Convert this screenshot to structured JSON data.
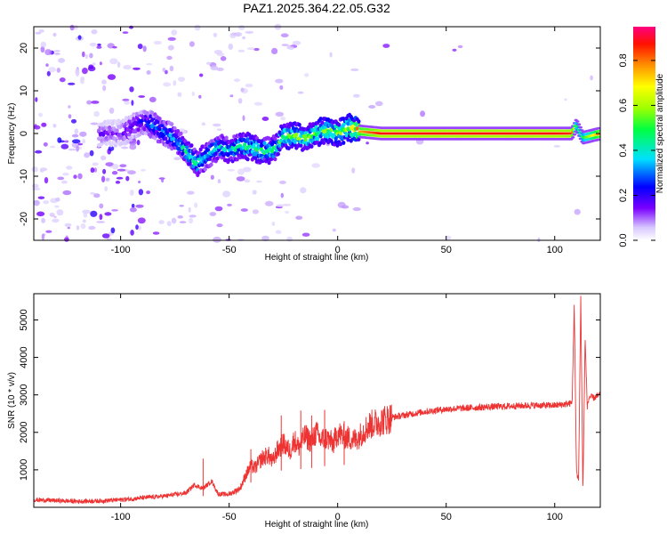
{
  "figure_title": "PAZ1.2025.364.22.05.G32",
  "chart_data": [
    {
      "type": "heatmap",
      "title": "PAZ1.2025.364.22.05.G32",
      "xlabel": "Height of straight line (km)",
      "ylabel": "Frequency (Hz)",
      "xlim": [
        -140,
        121
      ],
      "ylim": [
        -25,
        25
      ],
      "xticks": [
        -100,
        -50,
        0,
        50,
        100
      ],
      "yticks": [
        -20,
        -10,
        0,
        10,
        20
      ],
      "colorbar": {
        "label": "Normalized spectral amplitude",
        "range": [
          0,
          0.95
        ],
        "ticks": [
          0.0,
          0.2,
          0.4,
          0.6,
          0.8
        ],
        "colormap": "rainbow (white-lavender at 0 to magenta-red at max)"
      },
      "ridge": {
        "x": [
          -100,
          -90,
          -85,
          -80,
          -75,
          -70,
          -65,
          -60,
          -55,
          -50,
          -45,
          -40,
          -35,
          -30,
          -28,
          -25,
          -20,
          -15,
          -10,
          -5,
          0,
          5,
          10,
          20,
          50,
          100,
          108,
          110,
          113,
          121
        ],
        "y": [
          0,
          3,
          2,
          0,
          -1,
          -4,
          -7,
          -5,
          -3,
          -4,
          -3,
          -3,
          -4,
          -4,
          -3,
          -0.5,
          -0.5,
          -1,
          0,
          1,
          0,
          1.5,
          0.5,
          0,
          0,
          0,
          0,
          2,
          -1,
          0
        ],
        "amplitude": [
          0.15,
          0.25,
          0.3,
          0.35,
          0.35,
          0.45,
          0.45,
          0.4,
          0.4,
          0.45,
          0.45,
          0.5,
          0.5,
          0.5,
          0.5,
          0.55,
          0.55,
          0.55,
          0.55,
          0.6,
          0.6,
          0.6,
          0.8,
          0.92,
          0.92,
          0.92,
          0.9,
          0.5,
          0.5,
          0.85
        ]
      }
    },
    {
      "type": "line",
      "xlabel": "Height of straight line (km)",
      "ylabel": "SNR (10 * v/v)",
      "xlim": [
        -140,
        121
      ],
      "ylim": [
        0,
        5700
      ],
      "xticks": [
        -100,
        -50,
        0,
        50,
        100
      ],
      "yticks": [
        1000,
        2000,
        3000,
        4000,
        5000
      ],
      "color": "#ee3333",
      "series": [
        {
          "name": "SNR",
          "x": [
            -140,
            -130,
            -120,
            -110,
            -100,
            -90,
            -80,
            -70,
            -66,
            -62,
            -58,
            -55,
            -50,
            -45,
            -42,
            -40,
            -38,
            -35,
            -32,
            -30,
            -28,
            -25,
            -22,
            -20,
            -18,
            -15,
            -12,
            -10,
            -8,
            -5,
            -2,
            0,
            2,
            5,
            8,
            10,
            12,
            15,
            20,
            25,
            30,
            40,
            50,
            60,
            70,
            80,
            90,
            100,
            105,
            108,
            109,
            110,
            111,
            112,
            113,
            114,
            115,
            116,
            118,
            121
          ],
          "y": [
            200,
            180,
            160,
            170,
            200,
            250,
            300,
            380,
            600,
            500,
            700,
            350,
            350,
            500,
            900,
            1100,
            1050,
            1300,
            1400,
            1200,
            1500,
            1700,
            1500,
            1800,
            1600,
            1900,
            1750,
            2000,
            1800,
            1850,
            1700,
            2000,
            1900,
            1850,
            1800,
            1900,
            2050,
            2200,
            2300,
            2400,
            2450,
            2550,
            2620,
            2650,
            2680,
            2700,
            2720,
            2720,
            2750,
            2780,
            5400,
            1000,
            700,
            5600,
            400,
            4500,
            2700,
            2950,
            2920,
            3000
          ]
        }
      ],
      "spikes": [
        {
          "x": -62,
          "y": 1300
        },
        {
          "x": -40,
          "y": 1550
        },
        {
          "x": -26,
          "y": 2450
        },
        {
          "x": -17,
          "y": 2580
        },
        {
          "x": -12,
          "y": 2450
        },
        {
          "x": -6,
          "y": 2600
        },
        {
          "x": 3,
          "y": 2300
        }
      ]
    }
  ]
}
